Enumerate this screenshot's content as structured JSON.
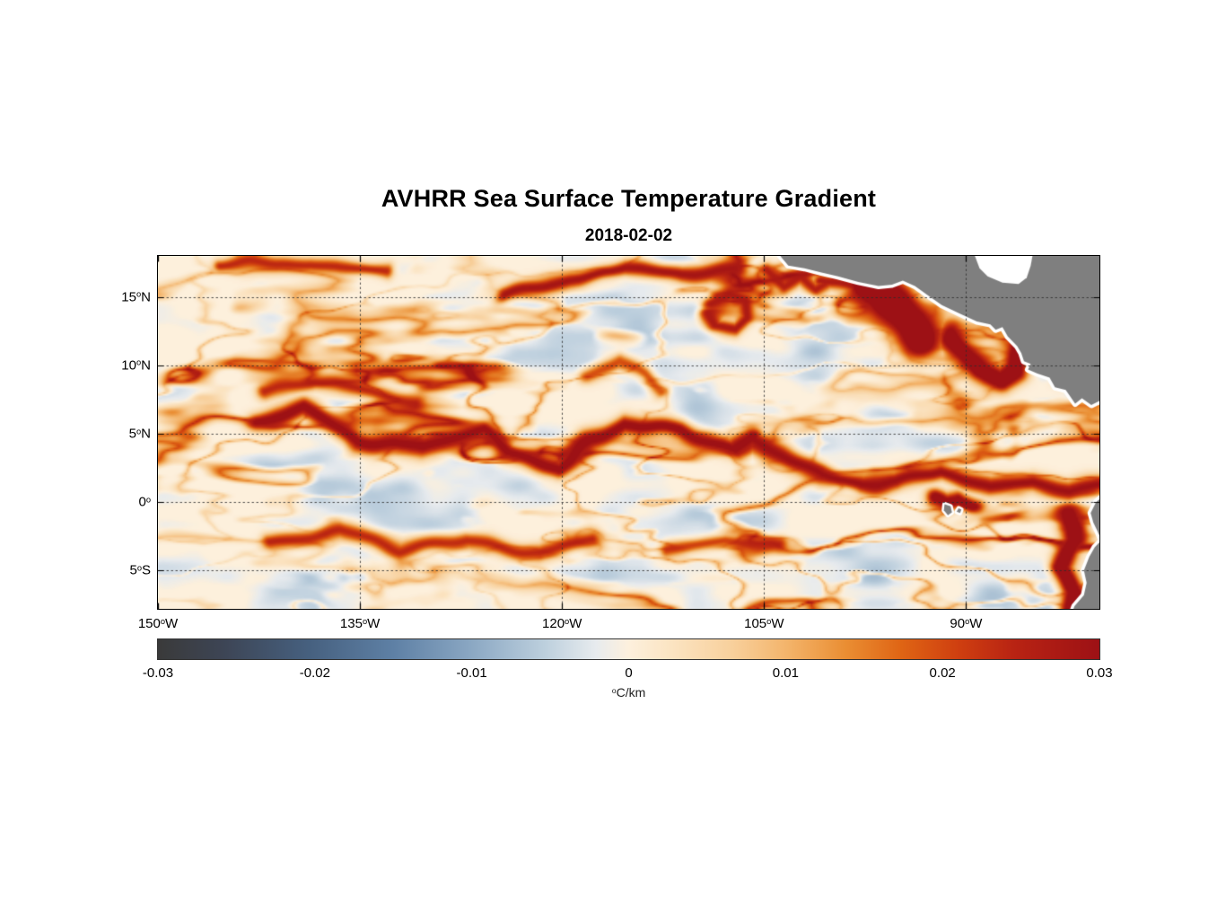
{
  "title": "AVHRR Sea Surface Temperature Gradient",
  "subtitle": "2018-02-02",
  "colorbar": {
    "deg": "o",
    "units": "C/km",
    "ticks": [
      "-0.03",
      "-0.02",
      "-0.01",
      "0",
      "0.01",
      "0.02",
      "0.03"
    ]
  },
  "chart_data": {
    "type": "heatmap",
    "title": "AVHRR Sea Surface Temperature Gradient",
    "date": "2018-02-02",
    "units": "degC/km",
    "degree_symbol": "o",
    "lon_range": [
      -150,
      -80.1
    ],
    "lat_range": [
      -7.8,
      18.0
    ],
    "x_ticks": [
      {
        "value": -150,
        "label_num": "150",
        "label_hem": "W"
      },
      {
        "value": -135,
        "label_num": "135",
        "label_hem": "W"
      },
      {
        "value": -120,
        "label_num": "120",
        "label_hem": "W"
      },
      {
        "value": -105,
        "label_num": "105",
        "label_hem": "W"
      },
      {
        "value": -90,
        "label_num": "90",
        "label_hem": "W"
      }
    ],
    "y_ticks": [
      {
        "value": 15,
        "label_num": "15",
        "label_hem": "N"
      },
      {
        "value": 10,
        "label_num": "10",
        "label_hem": "N"
      },
      {
        "value": 5,
        "label_num": "5",
        "label_hem": "N"
      },
      {
        "value": 0,
        "label_num": "0",
        "label_hem": ""
      },
      {
        "value": -5,
        "label_num": "5",
        "label_hem": "S"
      }
    ],
    "colorbar": {
      "min": -0.03,
      "max": 0.03,
      "tick_values": [
        -0.03,
        -0.02,
        -0.01,
        0,
        0.01,
        0.02,
        0.03
      ],
      "stops": [
        [
          0.0,
          "#3a3a3a"
        ],
        [
          0.07,
          "#3d4555"
        ],
        [
          0.16,
          "#46607f"
        ],
        [
          0.25,
          "#5e80a5"
        ],
        [
          0.33,
          "#89a6c2"
        ],
        [
          0.41,
          "#bccfdd"
        ],
        [
          0.465,
          "#e7ebee"
        ],
        [
          0.5,
          "#fdf0dd"
        ],
        [
          0.545,
          "#fbe4c2"
        ],
        [
          0.61,
          "#f8d09c"
        ],
        [
          0.67,
          "#f3b369"
        ],
        [
          0.73,
          "#ea8e33"
        ],
        [
          0.79,
          "#df6414"
        ],
        [
          0.85,
          "#cf3f10"
        ],
        [
          0.91,
          "#b82313"
        ],
        [
          1.0,
          "#9d1115"
        ]
      ]
    },
    "colors": {
      "land": "#7f7f7f",
      "coast_buffer": "#ffffff",
      "ocean_base": "#fdf0dd",
      "grid": "#2d2d2d",
      "axis": "#000000"
    },
    "fronts": [
      {
        "name": "necc-front-west",
        "intensity": 1.05,
        "width": 11,
        "points": [
          [
            -142.8,
            5.9
          ],
          [
            -139.2,
            6.9
          ],
          [
            -135.2,
            4.6
          ],
          [
            -130.5,
            3.9
          ],
          [
            -125.8,
            5.2
          ],
          [
            -124.1,
            3.6
          ],
          [
            -120.5,
            2.6
          ],
          [
            -117.8,
            4.5
          ],
          [
            -115.2,
            5.9
          ],
          [
            -111.2,
            5.2
          ],
          [
            -107.2,
            3.7
          ],
          [
            -106.0,
            4.6
          ]
        ]
      },
      {
        "name": "equatorial-front-east",
        "intensity": 1.0,
        "width": 10,
        "points": [
          [
            -106.0,
            4.4
          ],
          [
            -103.4,
            3.2
          ],
          [
            -100.5,
            1.9
          ],
          [
            -97.8,
            1.3
          ],
          [
            -95.2,
            1.4
          ],
          [
            -91.8,
            2.4
          ],
          [
            -88.5,
            1.4
          ],
          [
            -85.2,
            1.7
          ],
          [
            -82.5,
            1.0
          ],
          [
            -80.2,
            1.4
          ]
        ]
      },
      {
        "name": "south-band-west",
        "intensity": 0.8,
        "width": 9,
        "points": [
          [
            -141.8,
            -2.7
          ],
          [
            -136.5,
            -2.1
          ],
          [
            -131.8,
            -3.4
          ],
          [
            -127.2,
            -2.7
          ],
          [
            -121.8,
            -3.7
          ],
          [
            -117.8,
            -2.8
          ]
        ]
      },
      {
        "name": "south-band-east",
        "intensity": 0.7,
        "width": 8,
        "points": [
          [
            -112.0,
            -3.5
          ],
          [
            -108.0,
            -2.8
          ],
          [
            -104.0,
            -3.3
          ]
        ]
      },
      {
        "name": "north-band",
        "intensity": 0.95,
        "width": 9,
        "points": [
          [
            -124.5,
            15.2
          ],
          [
            -119.2,
            16.5
          ],
          [
            -115.2,
            17.1
          ],
          [
            -111.2,
            16.8
          ],
          [
            -107.2,
            17.1
          ]
        ]
      },
      {
        "name": "north-band-west",
        "intensity": 0.8,
        "width": 8,
        "points": [
          [
            -145.2,
            17.4
          ],
          [
            -138.5,
            17.6
          ],
          [
            -133.0,
            16.9
          ]
        ]
      },
      {
        "name": "tehuantepec-jet",
        "intensity": 1.5,
        "width": 22,
        "points": [
          [
            -97.7,
            16.0
          ],
          [
            -96.5,
            15.5
          ],
          [
            -95.3,
            14.4
          ],
          [
            -94.2,
            13.2
          ],
          [
            -93.5,
            12.2
          ]
        ]
      },
      {
        "name": "papagayo-jet",
        "intensity": 1.35,
        "width": 13,
        "points": [
          [
            -91.3,
            12.2
          ],
          [
            -90.1,
            11.0
          ],
          [
            -88.9,
            9.6
          ],
          [
            -87.6,
            9.0
          ],
          [
            -86.6,
            9.9
          ],
          [
            -86.3,
            11.2
          ]
        ]
      },
      {
        "name": "peru-coastal",
        "intensity": 1.3,
        "width": 12,
        "points": [
          [
            -82.5,
            -0.7
          ],
          [
            -81.8,
            -2.7
          ],
          [
            -82.7,
            -4.7
          ],
          [
            -81.8,
            -6.6
          ],
          [
            -82.3,
            -7.8
          ]
        ]
      },
      {
        "name": "ncc-arc",
        "intensity": 0.8,
        "width": 9,
        "points": [
          [
            -142.2,
            8.2
          ],
          [
            -138.2,
            8.9
          ],
          [
            -134.2,
            8.0
          ],
          [
            -131.0,
            7.2
          ]
        ]
      },
      {
        "name": "galapagos-front",
        "intensity": 1.15,
        "width": 10,
        "points": [
          [
            -92.4,
            0.2
          ],
          [
            -91.4,
            -0.1
          ],
          [
            -90.4,
            0.3
          ],
          [
            -89.4,
            -0.2
          ]
        ]
      },
      {
        "name": "costa-rica-dome",
        "intensity": 1.2,
        "width": 10,
        "points": [
          [
            -84.7,
            12.5
          ],
          [
            -83.7,
            11.0
          ],
          [
            -82.9,
            9.5
          ]
        ]
      },
      {
        "name": "mexico-coastal",
        "intensity": 0.9,
        "width": 8,
        "points": [
          [
            -100.7,
            16.3
          ],
          [
            -98.7,
            15.7
          ],
          [
            -97.0,
            15.4
          ]
        ]
      },
      {
        "name": "mexico-eddies",
        "intensity": 0.85,
        "width": 8,
        "points": [
          [
            -105.0,
            17.0
          ],
          [
            -103.5,
            15.9
          ],
          [
            -102.2,
            16.6
          ],
          [
            -101.0,
            15.6
          ],
          [
            -99.8,
            16.4
          ]
        ]
      },
      {
        "name": "tehuantepec-eddy",
        "intensity": 0.9,
        "width": 8,
        "points": [
          [
            -109.0,
            14.7
          ],
          [
            -107.8,
            15.4
          ],
          [
            -106.6,
            14.7
          ],
          [
            -106.4,
            13.4
          ],
          [
            -107.4,
            12.7
          ],
          [
            -108.8,
            13.0
          ],
          [
            -109.1,
            14.0
          ]
        ]
      },
      {
        "name": "mid-basin-loop",
        "intensity": 0.65,
        "width": 8,
        "points": [
          [
            -118.0,
            9.5
          ],
          [
            -116.0,
            10.3
          ],
          [
            -114.0,
            9.3
          ],
          [
            -112.5,
            8.2
          ]
        ]
      }
    ],
    "land": {
      "central_america": [
        [
          -103.8,
          18.5
        ],
        [
          -103.8,
          18.0
        ],
        [
          -103.2,
          17.3
        ],
        [
          -102.0,
          17.1
        ],
        [
          -100.8,
          16.8
        ],
        [
          -99.5,
          16.5
        ],
        [
          -98.0,
          16.1
        ],
        [
          -96.5,
          15.8
        ],
        [
          -95.5,
          15.9
        ],
        [
          -94.7,
          16.2
        ],
        [
          -93.8,
          15.8
        ],
        [
          -92.8,
          15.1
        ],
        [
          -91.8,
          14.4
        ],
        [
          -90.5,
          13.8
        ],
        [
          -89.2,
          13.2
        ],
        [
          -88.2,
          13.0
        ],
        [
          -87.8,
          12.6
        ],
        [
          -87.3,
          12.8
        ],
        [
          -86.9,
          12.1
        ],
        [
          -86.2,
          11.4
        ],
        [
          -85.9,
          10.9
        ],
        [
          -85.7,
          10.3
        ],
        [
          -85.2,
          10.1
        ],
        [
          -85.4,
          9.7
        ],
        [
          -84.7,
          9.4
        ],
        [
          -83.8,
          9.1
        ],
        [
          -83.4,
          8.4
        ],
        [
          -82.6,
          8.2
        ],
        [
          -81.9,
          7.2
        ],
        [
          -81.4,
          7.6
        ],
        [
          -80.7,
          7.1
        ],
        [
          -79.5,
          7.7
        ],
        [
          -79.5,
          18.5
        ]
      ],
      "caribbean_mask": [
        [
          -89.5,
          18.4
        ],
        [
          -89.0,
          17.1
        ],
        [
          -88.4,
          16.5
        ],
        [
          -87.3,
          16.05
        ],
        [
          -86.1,
          15.95
        ],
        [
          -85.5,
          16.4
        ],
        [
          -85.2,
          17.3
        ],
        [
          -85.0,
          18.4
        ]
      ],
      "south_america": [
        [
          -79.3,
          0.9
        ],
        [
          -80.35,
          0.0
        ],
        [
          -80.75,
          -0.8
        ],
        [
          -80.55,
          -1.5
        ],
        [
          -80.25,
          -2.1
        ],
        [
          -79.95,
          -2.8
        ],
        [
          -80.45,
          -3.3
        ],
        [
          -80.85,
          -4.0
        ],
        [
          -81.25,
          -5.0
        ],
        [
          -81.05,
          -5.9
        ],
        [
          -81.25,
          -6.8
        ],
        [
          -81.95,
          -7.6
        ],
        [
          -82.25,
          -8.4
        ],
        [
          -79.0,
          -8.6
        ]
      ],
      "galapagos": [
        [
          [
            -91.6,
            -0.15
          ],
          [
            -91.15,
            -0.3
          ],
          [
            -91.05,
            -0.75
          ],
          [
            -91.35,
            -0.95
          ],
          [
            -91.65,
            -0.6
          ]
        ],
        [
          [
            -90.55,
            -0.45
          ],
          [
            -90.35,
            -0.55
          ],
          [
            -90.45,
            -0.8
          ],
          [
            -90.7,
            -0.7
          ]
        ]
      ]
    }
  }
}
